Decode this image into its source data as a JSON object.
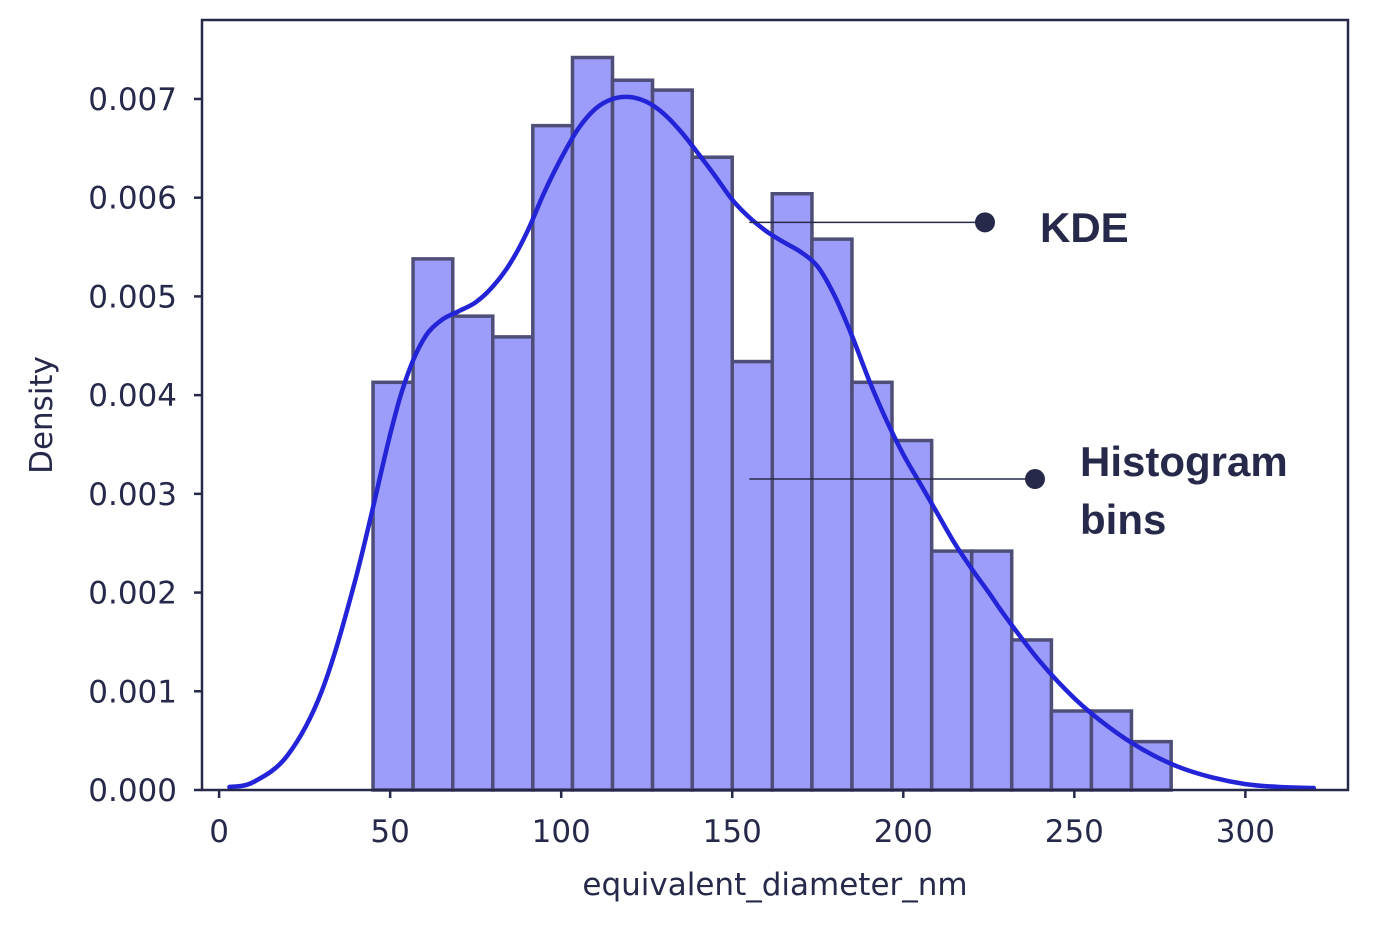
{
  "chart_data": {
    "type": "bar",
    "xlabel": "equivalent_diameter_nm",
    "ylabel": "Density",
    "xlim": [
      -5,
      330
    ],
    "ylim": [
      0,
      0.0078
    ],
    "xticks": [
      0,
      50,
      100,
      150,
      200,
      250,
      300
    ],
    "xtick_labels": [
      "0",
      "50",
      "100",
      "150",
      "200",
      "250",
      "300"
    ],
    "yticks": [
      0,
      0.001,
      0.002,
      0.003,
      0.004,
      0.005,
      0.006,
      0.007
    ],
    "ytick_labels": [
      "0.000",
      "0.001",
      "0.002",
      "0.003",
      "0.004",
      "0.005",
      "0.006",
      "0.007"
    ],
    "grid": false,
    "histogram": {
      "bin_edges": [
        45,
        56.7,
        68.3,
        80,
        91.7,
        103.3,
        115,
        126.7,
        138.3,
        150,
        161.7,
        173.3,
        185,
        196.7,
        208.3,
        220,
        231.7,
        243.3,
        255,
        266.7,
        278.3
      ],
      "values": [
        0.00413,
        0.00538,
        0.0048,
        0.00459,
        0.00673,
        0.00742,
        0.00719,
        0.00709,
        0.00641,
        0.00434,
        0.00604,
        0.00558,
        0.00413,
        0.00354,
        0.00242,
        0.00242,
        0.00152,
        0.0008,
        0.0008,
        0.00049
      ],
      "color": "#9c9cfa",
      "edge_color": "#4e4e78"
    },
    "kde": {
      "x": [
        3,
        10,
        20,
        30,
        40,
        50,
        55,
        60,
        65,
        70,
        75,
        80,
        85,
        90,
        95,
        100,
        105,
        110,
        115,
        120,
        125,
        130,
        135,
        140,
        145,
        150,
        155,
        160,
        165,
        170,
        175,
        180,
        185,
        190,
        195,
        200,
        205,
        210,
        215,
        220,
        225,
        230,
        240,
        250,
        260,
        270,
        280,
        290,
        300,
        310,
        320
      ],
      "y": [
        3e-05,
        8e-05,
        0.00035,
        0.001,
        0.00215,
        0.0036,
        0.0042,
        0.00458,
        0.00476,
        0.00485,
        0.00494,
        0.0051,
        0.00533,
        0.00565,
        0.00605,
        0.0064,
        0.0067,
        0.0069,
        0.007,
        0.00702,
        0.00697,
        0.00685,
        0.00667,
        0.00645,
        0.00622,
        0.00598,
        0.0058,
        0.00566,
        0.00555,
        0.00545,
        0.0053,
        0.005,
        0.0046,
        0.00415,
        0.00375,
        0.0034,
        0.0031,
        0.0028,
        0.0025,
        0.00224,
        0.002,
        0.00175,
        0.0013,
        0.00093,
        0.00064,
        0.00041,
        0.00024,
        0.00013,
        6e-05,
        3e-05,
        2e-05
      ],
      "color": "#2323d8"
    },
    "annotations": [
      {
        "text_lines": [
          "KDE"
        ],
        "x": 155,
        "y": 0.00575
      },
      {
        "text_lines": [
          "Histogram",
          "bins"
        ],
        "x": 155,
        "y": 0.00315
      }
    ]
  }
}
